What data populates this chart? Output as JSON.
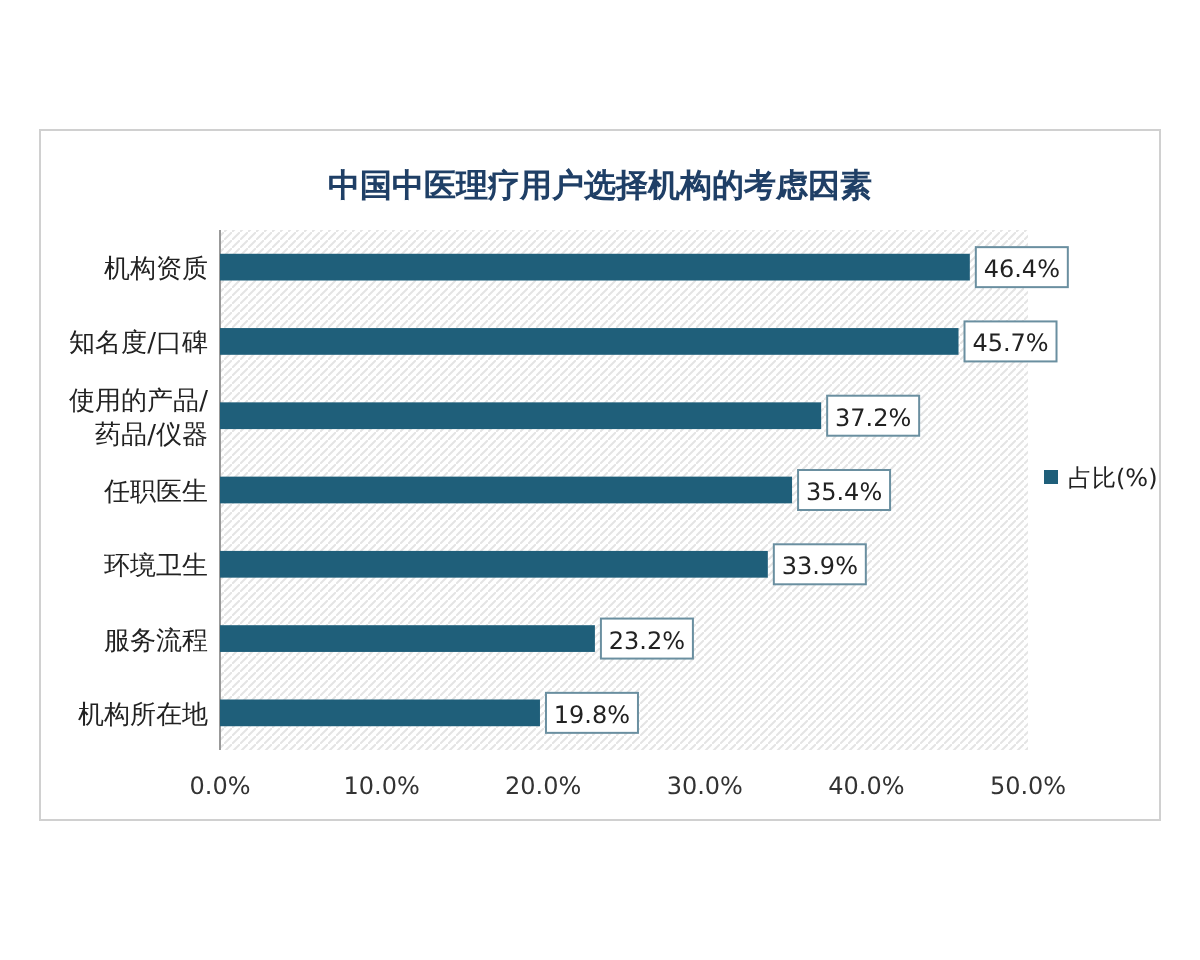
{
  "chart_data": {
    "type": "bar",
    "orientation": "horizontal",
    "title": "中国中医理疗用户选择机构的考虑因素",
    "categories": [
      "机构资质",
      "知名度/口碑",
      "使用的产品/药品/仪器",
      "任职医生",
      "环境卫生",
      "服务流程",
      "机构所在地"
    ],
    "series": [
      {
        "name": "占比(%)",
        "color": "#1f5f7a",
        "values": [
          46.4,
          45.7,
          37.2,
          35.4,
          33.9,
          23.2,
          19.8
        ],
        "value_labels": [
          "46.4%",
          "45.7%",
          "37.2%",
          "35.4%",
          "33.9%",
          "23.2%",
          "19.8%"
        ]
      }
    ],
    "xlim": [
      0,
      50
    ],
    "xticks": [
      {
        "value": 0,
        "label": "0.0%"
      },
      {
        "value": 10,
        "label": "10.0%"
      },
      {
        "value": 20,
        "label": "20.0%"
      },
      {
        "value": 30,
        "label": "30.0%"
      },
      {
        "value": 40,
        "label": "40.0%"
      },
      {
        "value": 50,
        "label": "50.0%"
      }
    ],
    "grid": false,
    "legend": "right"
  }
}
